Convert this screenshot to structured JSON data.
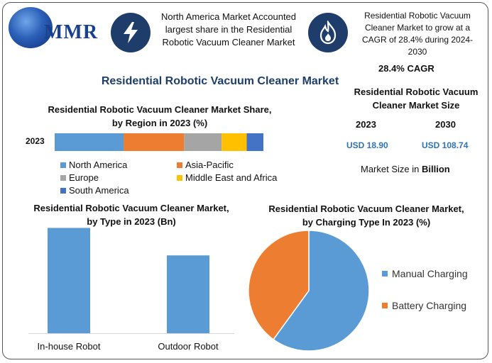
{
  "brand": {
    "logo_text": "MMR"
  },
  "callouts": {
    "region_share": "North America Market Accounted largest share in the Residential Robotic Vacuum Cleaner Market",
    "growth": "Residential Robotic Vacuum Cleaner Market to grow at a CAGR of 28.4% during 2024-2030"
  },
  "icons": {
    "left": "lightning-icon",
    "right": "flame-icon"
  },
  "main_title": "Residential Robotic Vacuum Cleaner Market",
  "market_size": {
    "cagr": "28.4% CAGR",
    "title": "Residential Robotic Vacuum Cleaner Market Size",
    "year1": "2023",
    "year2": "2030",
    "value1": "USD 18.90",
    "value2": "USD 108.74",
    "unit_prefix": "Market Size in ",
    "unit_bold": "Billion"
  },
  "colors": {
    "north_america": "#5b9bd5",
    "asia_pacific": "#ed7d31",
    "europe": "#a5a5a5",
    "mea": "#ffc000",
    "south_america": "#4472c4",
    "bar": "#5b9bd5",
    "manual": "#5b9bd5",
    "battery": "#ed7d31",
    "icon_bg": "#1f3d6b"
  },
  "chart_data": [
    {
      "type": "bar",
      "orientation": "horizontal-stacked",
      "title": "Residential Robotic Vacuum Cleaner Market Share, by Region in 2023 (%)",
      "categories": [
        "2023"
      ],
      "series": [
        {
          "name": "North America",
          "values": [
            33
          ]
        },
        {
          "name": "Asia-Pacific",
          "values": [
            29
          ]
        },
        {
          "name": "Europe",
          "values": [
            18
          ]
        },
        {
          "name": "Middle East and Africa",
          "values": [
            12
          ]
        },
        {
          "name": "South America",
          "values": [
            8
          ]
        }
      ],
      "legend": "bottom"
    },
    {
      "type": "bar",
      "title": "Residential Robotic Vacuum Cleaner Market, by Type in 2023 (Bn)",
      "categories": [
        "In-house Robot",
        "Outdoor Robot"
      ],
      "values": [
        11.5,
        8.5
      ],
      "ylim": [
        0,
        12
      ]
    },
    {
      "type": "pie",
      "title": "Residential Robotic Vacuum Cleaner Market, by Charging Type In 2023 (%)",
      "categories": [
        "Manual Charging",
        "Battery Charging"
      ],
      "values": [
        60,
        40
      ],
      "legend": "right"
    }
  ]
}
